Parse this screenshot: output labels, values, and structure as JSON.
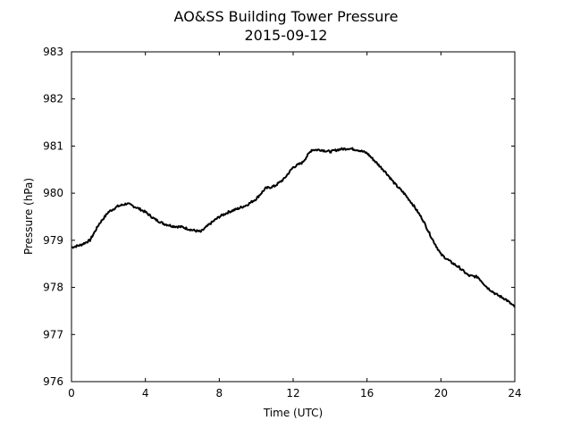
{
  "chart_data": {
    "type": "line",
    "title": "AO&SS Building Tower Pressure",
    "subtitle": "2015-09-12",
    "xlabel": "Time (UTC)",
    "ylabel": "Pressure (hPa)",
    "xlim": [
      0,
      24
    ],
    "ylim": [
      976,
      983
    ],
    "xticks": [
      0,
      4,
      8,
      12,
      16,
      20,
      24
    ],
    "yticks": [
      976,
      977,
      978,
      979,
      980,
      981,
      982,
      983
    ],
    "grid": false,
    "line_color": "#000000",
    "series": [
      {
        "x": [
          0,
          0.5,
          1,
          1.5,
          2,
          2.5,
          3,
          3.5,
          4,
          4.5,
          5,
          5.5,
          6,
          6.5,
          7,
          7.5,
          8,
          8.5,
          9,
          9.5,
          10,
          10.5,
          11,
          11.5,
          12,
          12.5,
          13,
          13.5,
          14,
          14.5,
          15,
          15.5,
          16,
          16.5,
          17,
          17.5,
          18,
          18.5,
          19,
          19.5,
          20,
          20.5,
          21,
          21.5,
          22,
          22.5,
          23,
          23.5,
          24
        ],
        "values": [
          978.85,
          978.9,
          979.0,
          979.35,
          979.6,
          979.72,
          979.78,
          979.7,
          979.6,
          979.45,
          979.35,
          979.3,
          979.28,
          979.22,
          979.18,
          979.35,
          979.5,
          979.6,
          979.67,
          979.75,
          979.88,
          980.1,
          980.15,
          980.3,
          980.55,
          980.65,
          980.92,
          980.92,
          980.88,
          980.93,
          980.95,
          980.92,
          980.85,
          980.65,
          980.45,
          980.2,
          980.0,
          979.75,
          979.45,
          979.05,
          978.7,
          978.55,
          978.42,
          978.25,
          978.22,
          978.0,
          977.85,
          977.75,
          977.58
        ]
      }
    ]
  }
}
